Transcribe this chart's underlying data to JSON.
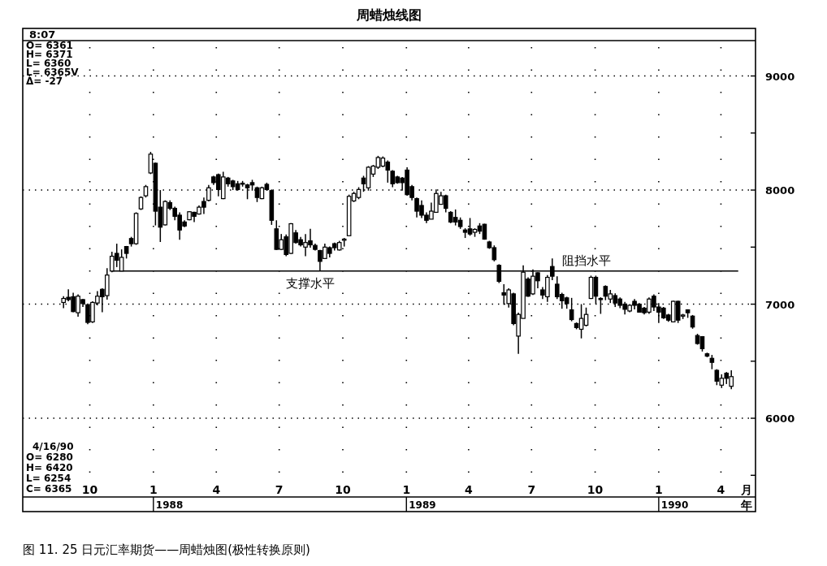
{
  "chart_data": {
    "type": "candlestick",
    "title": "周蜡烛线图",
    "x": [
      "1987-08-24",
      "1987-08-31",
      "1987-09-07",
      "1987-09-14",
      "1987-09-21",
      "1987-09-28",
      "1987-10-05",
      "1987-10-12",
      "1987-10-19",
      "1987-10-26",
      "1987-11-02",
      "1987-11-09",
      "1987-11-16",
      "1987-11-23",
      "1987-11-30",
      "1987-12-07",
      "1987-12-14",
      "1987-12-21",
      "1987-12-28",
      "1988-01-04",
      "1988-01-11",
      "1988-01-18",
      "1988-01-25",
      "1988-02-01",
      "1988-02-08",
      "1988-02-15",
      "1988-02-22",
      "1988-02-29",
      "1988-03-07",
      "1988-03-14",
      "1988-03-21",
      "1988-03-28",
      "1988-04-04",
      "1988-04-11",
      "1988-04-18",
      "1988-04-25",
      "1988-05-02",
      "1988-05-09",
      "1988-05-16",
      "1988-05-23",
      "1988-05-30",
      "1988-06-06",
      "1988-06-13",
      "1988-06-20",
      "1988-06-27",
      "1988-07-04",
      "1988-07-11",
      "1988-07-18",
      "1988-07-25",
      "1988-08-01",
      "1988-08-08",
      "1988-08-15",
      "1988-08-22",
      "1988-08-29",
      "1988-09-05",
      "1988-09-12",
      "1988-09-19",
      "1988-09-26",
      "1988-10-03",
      "1988-10-10",
      "1988-10-17",
      "1988-10-24",
      "1988-10-31",
      "1988-11-07",
      "1988-11-14",
      "1988-11-21",
      "1988-11-28",
      "1988-12-05",
      "1988-12-12",
      "1988-12-19",
      "1988-12-26",
      "1989-01-02",
      "1989-01-09",
      "1989-01-16",
      "1989-01-23",
      "1989-01-30",
      "1989-02-06",
      "1989-02-13",
      "1989-02-20",
      "1989-02-27",
      "1989-03-06",
      "1989-03-13",
      "1989-03-20",
      "1989-03-27",
      "1989-04-03",
      "1989-04-10",
      "1989-04-17",
      "1989-04-24",
      "1989-05-01",
      "1989-05-08",
      "1989-05-15",
      "1989-05-22",
      "1989-05-29",
      "1989-06-05",
      "1989-06-12",
      "1989-06-19",
      "1989-06-26",
      "1989-07-03",
      "1989-07-10",
      "1989-07-17",
      "1989-07-24",
      "1989-07-31",
      "1989-08-07",
      "1989-08-14",
      "1989-08-21",
      "1989-08-28",
      "1989-09-04",
      "1989-09-11",
      "1989-09-18",
      "1989-09-25",
      "1989-10-02",
      "1989-10-09",
      "1989-10-16",
      "1989-10-23",
      "1989-10-30",
      "1989-11-06",
      "1989-11-13",
      "1989-11-20",
      "1989-11-27",
      "1989-12-04",
      "1989-12-11",
      "1989-12-18",
      "1989-12-25",
      "1990-01-01",
      "1990-01-08",
      "1990-01-15",
      "1990-01-22",
      "1990-01-29",
      "1990-02-05",
      "1990-02-12",
      "1990-02-19",
      "1990-02-26",
      "1990-03-05",
      "1990-03-12",
      "1990-03-19",
      "1990-03-26",
      "1990-04-02",
      "1990-04-09",
      "1990-04-16"
    ],
    "ohlc": [
      [
        7015,
        7070,
        6965,
        7050
      ],
      [
        7060,
        7130,
        7025,
        7040
      ],
      [
        7065,
        7100,
        6930,
        6935
      ],
      [
        6925,
        7085,
        6890,
        7070
      ],
      [
        7040,
        7045,
        6975,
        7005
      ],
      [
        6995,
        7005,
        6825,
        6840
      ],
      [
        6845,
        7025,
        6835,
        7015
      ],
      [
        7010,
        7115,
        6990,
        7070
      ],
      [
        7130,
        7140,
        6930,
        7065
      ],
      [
        7075,
        7315,
        7040,
        7255
      ],
      [
        7290,
        7460,
        7280,
        7420
      ],
      [
        7445,
        7530,
        7325,
        7385
      ],
      [
        7290,
        7480,
        7290,
        7410
      ],
      [
        7505,
        7510,
        7400,
        7445
      ],
      [
        7575,
        7590,
        7505,
        7530
      ],
      [
        7530,
        7805,
        7520,
        7795
      ],
      [
        7835,
        7945,
        7825,
        7935
      ],
      [
        7950,
        8045,
        7935,
        8030
      ],
      [
        8150,
        8335,
        8140,
        8315
      ],
      [
        8235,
        8240,
        7690,
        7815
      ],
      [
        7850,
        8000,
        7545,
        7675
      ],
      [
        7695,
        7910,
        7690,
        7900
      ],
      [
        7890,
        7910,
        7825,
        7840
      ],
      [
        7840,
        7855,
        7735,
        7770
      ],
      [
        7780,
        7805,
        7565,
        7650
      ],
      [
        7720,
        7735,
        7675,
        7685
      ],
      [
        7740,
        7815,
        7735,
        7810
      ],
      [
        7805,
        7810,
        7720,
        7770
      ],
      [
        7790,
        7865,
        7785,
        7850
      ],
      [
        7900,
        7935,
        7790,
        7850
      ],
      [
        7910,
        8045,
        7900,
        8020
      ],
      [
        8115,
        8125,
        8045,
        8065
      ],
      [
        8135,
        8145,
        7945,
        8005
      ],
      [
        7925,
        8160,
        7920,
        8115
      ],
      [
        8105,
        8115,
        8030,
        8055
      ],
      [
        8080,
        8090,
        8000,
        8030
      ],
      [
        8055,
        8080,
        7995,
        8005
      ],
      [
        8060,
        8080,
        8030,
        8055
      ],
      [
        8045,
        8055,
        7920,
        8020
      ],
      [
        8065,
        8090,
        7995,
        8045
      ],
      [
        8020,
        8030,
        7895,
        7935
      ],
      [
        7925,
        8030,
        7920,
        8020
      ],
      [
        8050,
        8065,
        7995,
        8005
      ],
      [
        7995,
        8005,
        7695,
        7735
      ],
      [
        7660,
        7735,
        7475,
        7480
      ],
      [
        7480,
        7615,
        7475,
        7565
      ],
      [
        7590,
        7610,
        7420,
        7435
      ],
      [
        7445,
        7710,
        7440,
        7705
      ],
      [
        7625,
        7650,
        7530,
        7540
      ],
      [
        7565,
        7590,
        7505,
        7520
      ],
      [
        7500,
        7615,
        7420,
        7540
      ],
      [
        7555,
        7660,
        7495,
        7520
      ],
      [
        7515,
        7530,
        7470,
        7480
      ],
      [
        7470,
        7475,
        7290,
        7375
      ],
      [
        7400,
        7530,
        7400,
        7500
      ],
      [
        7495,
        7505,
        7410,
        7445
      ],
      [
        7530,
        7540,
        7470,
        7495
      ],
      [
        7475,
        7555,
        7470,
        7540
      ],
      [
        7560,
        7580,
        7505,
        7570
      ],
      [
        7600,
        7960,
        7600,
        7945
      ],
      [
        7905,
        7985,
        7895,
        7970
      ],
      [
        7935,
        8025,
        7920,
        8005
      ],
      [
        8105,
        8125,
        7985,
        8055
      ],
      [
        8020,
        8210,
        7995,
        8200
      ],
      [
        8140,
        8220,
        8115,
        8210
      ],
      [
        8200,
        8300,
        8185,
        8285
      ],
      [
        8210,
        8295,
        8200,
        8280
      ],
      [
        8245,
        8260,
        8065,
        8175
      ],
      [
        8165,
        8175,
        8025,
        8055
      ],
      [
        8115,
        8125,
        8055,
        8065
      ],
      [
        8105,
        8115,
        7995,
        8065
      ],
      [
        8175,
        8200,
        7950,
        7960
      ],
      [
        8030,
        8045,
        7910,
        7935
      ],
      [
        7925,
        7935,
        7760,
        7815
      ],
      [
        7865,
        7910,
        7755,
        7780
      ],
      [
        7780,
        7805,
        7710,
        7735
      ],
      [
        7745,
        7890,
        7745,
        7815
      ],
      [
        7805,
        8005,
        7805,
        7970
      ],
      [
        7875,
        7985,
        7875,
        7950
      ],
      [
        7950,
        7960,
        7805,
        7840
      ],
      [
        7805,
        7815,
        7710,
        7720
      ],
      [
        7760,
        7830,
        7690,
        7720
      ],
      [
        7735,
        7760,
        7660,
        7680
      ],
      [
        7650,
        7665,
        7580,
        7630
      ],
      [
        7660,
        7755,
        7600,
        7615
      ],
      [
        7630,
        7665,
        7590,
        7655
      ],
      [
        7685,
        7710,
        7615,
        7640
      ],
      [
        7700,
        7705,
        7565,
        7570
      ],
      [
        7545,
        7555,
        7485,
        7495
      ],
      [
        7495,
        7515,
        7375,
        7390
      ],
      [
        7340,
        7350,
        7185,
        7200
      ],
      [
        7100,
        7175,
        6995,
        7080
      ],
      [
        7005,
        7140,
        6970,
        7125
      ],
      [
        7090,
        7100,
        6815,
        6830
      ],
      [
        6720,
        6925,
        6565,
        6910
      ],
      [
        6875,
        7340,
        6875,
        7280
      ],
      [
        7220,
        7235,
        7065,
        7070
      ],
      [
        7090,
        7305,
        7080,
        7245
      ],
      [
        7275,
        7280,
        7140,
        7205
      ],
      [
        7125,
        7150,
        7045,
        7080
      ],
      [
        7065,
        7255,
        7020,
        7235
      ],
      [
        7330,
        7400,
        7210,
        7245
      ],
      [
        7175,
        7245,
        7045,
        7065
      ],
      [
        7085,
        7100,
        6960,
        7030
      ],
      [
        7055,
        7065,
        6960,
        7005
      ],
      [
        6950,
        7055,
        6850,
        6865
      ],
      [
        6830,
        6840,
        6780,
        6795
      ],
      [
        6780,
        7000,
        6700,
        6875
      ],
      [
        6815,
        6970,
        6805,
        6910
      ],
      [
        7050,
        7250,
        7045,
        7235
      ],
      [
        7235,
        7250,
        7000,
        7070
      ],
      [
        7050,
        7060,
        6915,
        7040
      ],
      [
        7155,
        7165,
        7035,
        7070
      ],
      [
        7045,
        7125,
        7010,
        7090
      ],
      [
        7075,
        7095,
        6975,
        7010
      ],
      [
        7045,
        7060,
        6965,
        6990
      ],
      [
        7000,
        7020,
        6910,
        6955
      ],
      [
        6940,
        7000,
        6930,
        6990
      ],
      [
        7025,
        7045,
        6955,
        6990
      ],
      [
        7000,
        7010,
        6925,
        6930
      ],
      [
        6965,
        6975,
        6910,
        6925
      ],
      [
        6930,
        7060,
        6915,
        7045
      ],
      [
        7070,
        7085,
        6940,
        6975
      ],
      [
        6975,
        7010,
        6835,
        6930
      ],
      [
        6965,
        6975,
        6870,
        6880
      ],
      [
        6905,
        6915,
        6845,
        6860
      ],
      [
        6845,
        7030,
        6840,
        7025
      ],
      [
        7025,
        7030,
        6835,
        6860
      ],
      [
        6895,
        6915,
        6870,
        6905
      ],
      [
        6950,
        6955,
        6880,
        6925
      ],
      [
        6895,
        6905,
        6785,
        6800
      ],
      [
        6725,
        6740,
        6645,
        6655
      ],
      [
        6715,
        6720,
        6585,
        6610
      ],
      [
        6565,
        6575,
        6535,
        6545
      ],
      [
        6525,
        6555,
        6430,
        6490
      ],
      [
        6420,
        6430,
        6290,
        6325
      ],
      [
        6290,
        6385,
        6265,
        6350
      ],
      [
        6395,
        6405,
        6300,
        6350
      ],
      [
        6280,
        6420,
        6254,
        6365
      ]
    ],
    "series": [
      {
        "type": "line",
        "color": "#000000",
        "x": [
          "1987-11-02",
          "1990-04-26"
        ],
        "values": [
          7290,
          7290
        ]
      }
    ],
    "xlim": [
      "1987-06-26",
      "1990-05-21"
    ],
    "xticks": [
      {
        "value": "1987-10-01",
        "label": "10"
      },
      {
        "value": "1988-01-01",
        "label": "1"
      },
      {
        "value": "1988-04-01",
        "label": "4"
      },
      {
        "value": "1988-07-01",
        "label": "7"
      },
      {
        "value": "1988-10-01",
        "label": "10"
      },
      {
        "value": "1989-01-01",
        "label": "1"
      },
      {
        "value": "1989-04-01",
        "label": "4"
      },
      {
        "value": "1989-07-01",
        "label": "7"
      },
      {
        "value": "1989-10-01",
        "label": "10"
      },
      {
        "value": "1990-01-01",
        "label": "1"
      },
      {
        "value": "1990-04-01",
        "label": "4"
      }
    ],
    "ylim": [
      5310,
      9310
    ],
    "yticks": [
      {
        "value": 5500,
        "label": null
      },
      6000,
      {
        "value": 6500,
        "label": null
      },
      7000,
      {
        "value": 7500,
        "label": null
      },
      8000,
      {
        "value": 8500,
        "label": null
      },
      9000
    ],
    "grid": true,
    "annotations": [
      "8:07",
      "O= 6361",
      "H= 6371",
      "L= 6360",
      "L= 6365V",
      "Δ=  -27",
      "4/16/90",
      "O= 6280",
      "H= 6420",
      "L= 6254",
      "C= 6365",
      "月",
      "年",
      "图 11. 25  日元汇率期货——周蜡烛图(极性转换原则)",
      {
        "text": "支撑水平",
        "x": "1988-08-15",
        "y": 7290
      },
      {
        "text": "阻挡水平",
        "x": "1989-09-18",
        "y": 7290
      },
      "1988",
      "1989",
      "1990"
    ]
  }
}
